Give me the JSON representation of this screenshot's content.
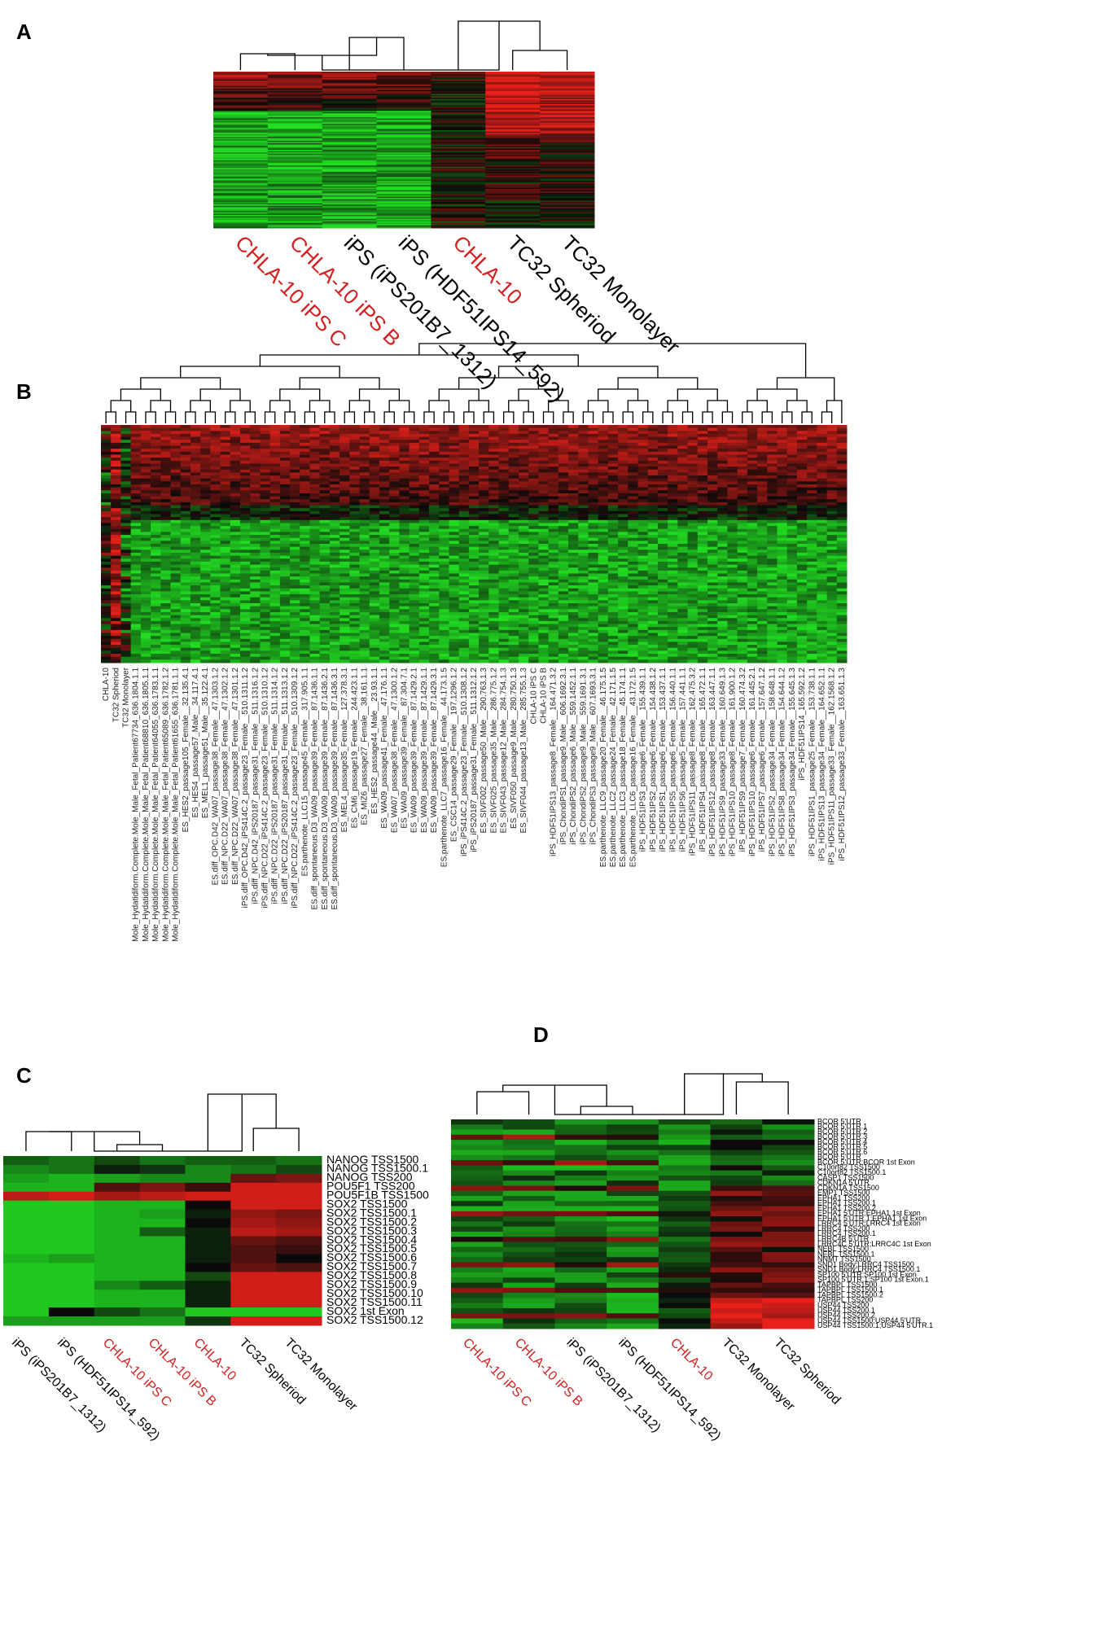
{
  "panels": {
    "A": "A",
    "B": "B",
    "C": "C",
    "D": "D"
  },
  "colors": {
    "red": "#e8201a",
    "green": "#22dd22",
    "black": "#000000",
    "highlight": "#d42020"
  },
  "chart_data": [
    {
      "type": "heatmap",
      "panel": "A",
      "columns": [
        {
          "label": "CHLA-10 iPS C",
          "highlight": true
        },
        {
          "label": "CHLA-10 iPS B",
          "highlight": true
        },
        {
          "label": "iPS (iPS201B7_1312)",
          "highlight": false
        },
        {
          "label": "iPS (HDF51IPS14_592)",
          "highlight": false
        },
        {
          "label": "CHLA-10",
          "highlight": true
        },
        {
          "label": "TC32 Spheriod",
          "highlight": false
        },
        {
          "label": "TC32 Monolayer",
          "highlight": false
        }
      ],
      "dendrogram": [
        [
          0,
          1
        ],
        [
          2,
          3
        ],
        [
          7,
          8
        ],
        [
          5,
          6
        ],
        [
          4,
          10
        ],
        [
          9,
          11
        ]
      ],
      "scale": "green-black-red"
    },
    {
      "type": "heatmap",
      "panel": "B",
      "columns": [
        {
          "label": "CHLA-10",
          "highlight": true
        },
        {
          "label": "TC32 Spheriod",
          "highlight": false
        },
        {
          "label": "TC32 Monolayer",
          "highlight": false
        },
        {
          "label": "Mole_Hydatidiform.Complete.Mole_Male_Fetal_Patient67734_636.1804.1.1",
          "highlight": false
        },
        {
          "label": "Mole_Hydatidiform.Complete.Mole_Male_Fetal_Patient68810_636.1805.1.1",
          "highlight": false
        },
        {
          "label": "Mole_Hydatidiform.Complete.Mole_Male_Fetal_Patient64055_636.1783.1.1",
          "highlight": false
        },
        {
          "label": "Mole_Hydatidiform.Complete.Mole_Male_Fetal_Patient65089_636.1782.1.2",
          "highlight": false
        },
        {
          "label": "Mole_Hydatidiform.Complete.Mole_Male_Fetal_Patient61655_636.1781.1.1",
          "highlight": false
        },
        {
          "label": "ES_HES2_passage105_Female__32.135.4.1",
          "highlight": false
        },
        {
          "label": "ES_HES4_passage57_Male__34.117.4.1",
          "highlight": false
        },
        {
          "label": "ES_MEL1_passage51_Male__35.122.4.1",
          "highlight": false
        },
        {
          "label": "ES.diff_OPC.D42_WA07_passage38_Female__47.1303.1.2",
          "highlight": false
        },
        {
          "label": "ES.diff_NPC.D22_WA07_passage38_Female__47.1302.1.2",
          "highlight": false
        },
        {
          "label": "ES.diff_NPC.D22_WA07_passage38_Female__47.1301.1.2",
          "highlight": false
        },
        {
          "label": "iPS.diff_OPC.D42_iPS414C.2_passage23_Female__510.1311.1.2",
          "highlight": false
        },
        {
          "label": "iPS.diff_NPC.D42_iPS20187_passage31_Female__511.1316.1.2",
          "highlight": false
        },
        {
          "label": "iPS.diff_NPC.D22_iPS414C.2_passage23_Female__510.1310.1.2",
          "highlight": false
        },
        {
          "label": "iPS.diff_NPC.D22_iPS20187_passage31_Female__511.1314.1.2",
          "highlight": false
        },
        {
          "label": "iPS.diff_NPC.D22_iPS20187_passage31_Female__511.1313.1.2",
          "highlight": false
        },
        {
          "label": "iPS.diff_NPC.D22_iPS414C.2_passage23_Female__510.1309.1.2",
          "highlight": false
        },
        {
          "label": "ES.parthenote_LLC15_passage45_Female__317.905.1.1",
          "highlight": false
        },
        {
          "label": "ES.diff_spontaneous.D3_WA09_passage39_Female__87.1436.1.1",
          "highlight": false
        },
        {
          "label": "ES.diff_spontaneous.D3_WA09_passage39_Female__87.1436.2.1",
          "highlight": false
        },
        {
          "label": "ES.diff_spontaneous.D3_WA09_passage39_Female__87.1436.3.1",
          "highlight": false
        },
        {
          "label": "ES_MEL4_passage35_Female__127.378.3.1",
          "highlight": false
        },
        {
          "label": "ES_CM6_passage19_Female__244.423.1.1",
          "highlight": false
        },
        {
          "label": "ES_MIZ6_passage27_Female__38.161.1.1",
          "highlight": false
        },
        {
          "label": "ES_HES2_passage44_Male__23.93.1.1",
          "highlight": false
        },
        {
          "label": "ES_WA09_passage41_Female__47.176.1.1",
          "highlight": false
        },
        {
          "label": "ES_WA07_passage38_Female__47.1300.1.2",
          "highlight": false
        },
        {
          "label": "ES_WA09_passage39_Female__87.304.7.1",
          "highlight": false
        },
        {
          "label": "ES_WA09_passage39_Female__87.1429.2.1",
          "highlight": false
        },
        {
          "label": "ES_WA09_passage39_Female__87.1429.1.1",
          "highlight": false
        },
        {
          "label": "ES_WA09_passage39_Female__87.1429.3.1",
          "highlight": false
        },
        {
          "label": "ES.parthenote_LLC7_passage16_Female__44.173.1.5",
          "highlight": false
        },
        {
          "label": "ES_CSC14_passage29_Female__197.1296.1.2",
          "highlight": false
        },
        {
          "label": "iPS_iPS414C.2_passage23_Female__510.1308.1.2",
          "highlight": false
        },
        {
          "label": "iPS_iPS20187_passage31_Female__511.1312.1.2",
          "highlight": false
        },
        {
          "label": "ES_SIVF002_passage50_Male__290.763.1.3",
          "highlight": false
        },
        {
          "label": "ES_SIVF025_passage35_Male__286.775.1.2",
          "highlight": false
        },
        {
          "label": "ES_SIVF043_passage12_Male__284.754.1.3",
          "highlight": false
        },
        {
          "label": "ES_SIVF050_passage9_Male__280.750.1.3",
          "highlight": false
        },
        {
          "label": "ES_SIVF044_passage13_Male__285.755.1.3",
          "highlight": false
        },
        {
          "label": "CHLA-10 iPS C",
          "highlight": true
        },
        {
          "label": "CHLA-10 iPS B",
          "highlight": true
        },
        {
          "label": "iPS_HDF51IPS13_passage8_Female__164.471.3.2",
          "highlight": false
        },
        {
          "label": "iPS_ChondiPS1_passage9_Male__606.1692.3.1",
          "highlight": false
        },
        {
          "label": "iPS_ChondiPS2_passage6_Male__559.1452.1.1",
          "highlight": false
        },
        {
          "label": "iPS_ChondiPS2_passage9_Male__559.1691.3.1",
          "highlight": false
        },
        {
          "label": "iPS_ChondiPS3_passage9_Male__607.1693.3.1",
          "highlight": false
        },
        {
          "label": "ES.parthenote_LLC9_passage20_Female__46.175.1.5",
          "highlight": false
        },
        {
          "label": "ES.parthenote_LLC2_passage24_Female__42.171.1.5",
          "highlight": false
        },
        {
          "label": "ES.parthenote_LLC3_passage18_Female__45.174.1.1",
          "highlight": false
        },
        {
          "label": "ES.parthenote_LLC6_passage16_Female__43.172.1.5",
          "highlight": false
        },
        {
          "label": "iPS_HDF51IPS3_passage6_Female__155.439.1.1",
          "highlight": false
        },
        {
          "label": "iPS_HDF51IPS2_passage6_Female__154.438.1.2",
          "highlight": false
        },
        {
          "label": "iPS_HDF51IPS1_passage6_Female__153.437.1.1",
          "highlight": false
        },
        {
          "label": "iPS_HDF51IPS5_passage6_Female__156.440.1.1",
          "highlight": false
        },
        {
          "label": "iPS_HDF51IPS6_passage5_Female__157.441.1.1",
          "highlight": false
        },
        {
          "label": "iPS_HDF51IPS11_passage8_Female__162.475.3.2",
          "highlight": false
        },
        {
          "label": "iPS_HDF51IPS4_passage8_Female__165.472.1.1",
          "highlight": false
        },
        {
          "label": "iPS_HDF51IPS12_passage8_Female__163.447.1.1",
          "highlight": false
        },
        {
          "label": "iPS_HDF51IPS9_passage33_Female__160.649.1.3",
          "highlight": false
        },
        {
          "label": "iPS_HDF51IPS10_passage8_Female__161.900.1.2",
          "highlight": false
        },
        {
          "label": "iPS_HDF51IPS9_passage7_Female__160.474.3.2",
          "highlight": false
        },
        {
          "label": "iPS_HDF51IPS10_passage6_Female__161.445.2.1",
          "highlight": false
        },
        {
          "label": "iPS_HDF51IPS7_passage6_Female__157.647.1.2",
          "highlight": false
        },
        {
          "label": "iPS_HDF51IPS2_passage34_Female__158.648.1.1",
          "highlight": false
        },
        {
          "label": "iPS_HDF51IPS8_passage34_Female__154.644.1.2",
          "highlight": false
        },
        {
          "label": "iPS_HDF51IPS3_passage34_Female__155.645.1.3",
          "highlight": false
        },
        {
          "label": "iPS_HDF51IPS14_165.592.1.2",
          "highlight": false
        },
        {
          "label": "iPS_HDF51IPS1_passage25_Female__153.738.1.1",
          "highlight": false
        },
        {
          "label": "iPS_HDF51IPS13_passage34_Female__164.652.1.1",
          "highlight": false
        },
        {
          "label": "iPS_HDF51IPS11_passage33_Female__162.1568.1.2",
          "highlight": false
        },
        {
          "label": "iPS_HDF51IPS12_passage33_Female__163.651.1.3",
          "highlight": false
        }
      ],
      "scale": "green-black-red"
    },
    {
      "type": "heatmap",
      "panel": "C",
      "columns": [
        {
          "label": "iPS (iPS201B7_1312)",
          "highlight": false
        },
        {
          "label": "iPS (HDF51IPS14_592)",
          "highlight": false
        },
        {
          "label": "CHLA-10 iPS C",
          "highlight": true
        },
        {
          "label": "CHLA-10 iPS B",
          "highlight": true
        },
        {
          "label": "CHLA-10",
          "highlight": true
        },
        {
          "label": "TC32 Spheriod",
          "highlight": false
        },
        {
          "label": "TC32 Monolayer",
          "highlight": false
        }
      ],
      "rows": [
        "NANOG TSS1500",
        "NANOG TSS1500.1",
        "NANOG TSS200",
        "POU5F1 TSS200",
        "POU5F1B TSS1500",
        "SOX2 TSS1500",
        "SOX2 TSS1500.1",
        "SOX2 TSS1500.2",
        "SOX2 TSS1500.3",
        "SOX2 TSS1500.4",
        "SOX2 TSS1500.5",
        "SOX2 TSS1500.6",
        "SOX2 TSS1500.7",
        "SOX2 TSS1500.8",
        "SOX2 TSS1500.9",
        "SOX2 TSS1500.10",
        "SOX2 TSS1500.11",
        "SOX2 1st Exon",
        "SOX2 TSS1500.12"
      ],
      "values": [
        [
          -0.4,
          -0.5,
          -0.3,
          -0.5,
          -0.4,
          -0.4,
          -0.5
        ],
        [
          -0.6,
          -0.5,
          -0.1,
          -0.2,
          -0.6,
          -0.5,
          -0.3
        ],
        [
          -0.7,
          -0.8,
          -0.7,
          -0.6,
          -0.6,
          0.4,
          0.5
        ],
        [
          -0.8,
          -0.8,
          0.3,
          0.5,
          0.2,
          0.9,
          0.9
        ],
        [
          0.8,
          0.9,
          0.7,
          0.8,
          0.9,
          0.9,
          0.9
        ],
        [
          -0.9,
          -0.9,
          -0.8,
          -0.8,
          0.0,
          0.9,
          0.9
        ],
        [
          -0.9,
          -0.9,
          -0.8,
          -0.7,
          -0.1,
          0.6,
          0.5
        ],
        [
          -0.9,
          -0.9,
          -0.8,
          -0.8,
          0.0,
          0.7,
          0.6
        ],
        [
          -0.9,
          -0.9,
          -0.8,
          -0.4,
          -0.1,
          0.8,
          0.7
        ],
        [
          -0.9,
          -0.9,
          -0.8,
          -0.8,
          -0.1,
          0.4,
          0.3
        ],
        [
          -0.9,
          -0.9,
          -0.8,
          -0.8,
          -0.1,
          0.3,
          0.2
        ],
        [
          -0.8,
          -0.7,
          -0.8,
          -0.8,
          -0.1,
          0.3,
          0.0
        ],
        [
          -0.9,
          -0.9,
          -0.8,
          -0.8,
          0.0,
          0.4,
          0.3
        ],
        [
          -0.9,
          -0.9,
          -0.8,
          -0.8,
          -0.3,
          0.9,
          0.9
        ],
        [
          -0.9,
          -0.9,
          -0.6,
          -0.4,
          -0.1,
          0.9,
          0.9
        ],
        [
          -0.9,
          -0.9,
          -0.8,
          -0.8,
          -0.1,
          0.9,
          0.9
        ],
        [
          -0.9,
          -0.9,
          -0.8,
          -0.8,
          -0.1,
          0.9,
          0.9
        ],
        [
          -0.9,
          0.0,
          -0.3,
          -0.5,
          -0.9,
          -0.9,
          -0.9
        ],
        [
          -0.7,
          -0.7,
          -0.7,
          -0.7,
          -0.2,
          0.9,
          0.9
        ]
      ],
      "dendrogram": [
        [
          2,
          3
        ],
        [
          0,
          1
        ],
        [
          8,
          7
        ],
        [
          5,
          6
        ],
        [
          4,
          10
        ],
        [
          9,
          11
        ]
      ]
    },
    {
      "type": "heatmap",
      "panel": "D",
      "columns": [
        {
          "label": "CHLA-10 iPS C",
          "highlight": true
        },
        {
          "label": "CHLA-10 iPS B",
          "highlight": true
        },
        {
          "label": "iPS (iPS201B7_1312)",
          "highlight": false
        },
        {
          "label": "iPS (HDF51IPS14_592)",
          "highlight": false
        },
        {
          "label": "CHLA-10",
          "highlight": true
        },
        {
          "label": "TC32 Monolayer",
          "highlight": false
        },
        {
          "label": "TC32 Spheriod",
          "highlight": false
        }
      ],
      "rows": [
        "BCOR 5'UTR",
        "BCOR 5'UTR.1",
        "BCOR 5'UTR.2",
        "BCOR 5'UTR.3",
        "BCOR 5'UTR.4",
        "BCOR 5'UTR.5",
        "BCOR 5'UTR.6",
        "BCOR 5'UTR",
        "BCOR 5'UTR;BCOR 1st Exon",
        "C10orf82 TSS1500",
        "C10orf82 TSS1500.1",
        "CASP1 TSS1500",
        "CDKN1A 5'UTR",
        "CDKN1A TSS1500",
        "EMP1 TSS1500",
        "EPHA1 TSS200",
        "EPHA1 TSS200.1",
        "EPHA1 TSS200.2",
        "EPHA1 5'UTR;EPHA1 1st Exon",
        "EPHA1 5'UTR.1;EPHA1 1st Exon",
        "LRRC4 5'UTR;LRRC4 1st Exon",
        "LRRC4 TSS200",
        "LRRC4 TSS200.1",
        "LRRC4B 5'UTR",
        "LRRC4C 5'UTR;LRRC4C 1st Exon",
        "NEBL TSS1500",
        "NEBL TSS1500.1",
        "NNMT TSS1500",
        "SND1 Body;LRRC4 TSS1500",
        "SND1 Body;LRRC4 TSS1500.1",
        "SP100 5'UTR;SP100 1st Exon",
        "SP100 5'UTR.1;SP100 1st Exon.1",
        "TAPBPL TSS1500",
        "TAPBPL TSS1500.1",
        "TAPBPL TSS1500.2",
        "TAPBPL TSS200",
        "USP44 TSS200",
        "USP44 TSS200.1",
        "USP44 TSS200.2",
        "USP44 TSS1500;USP44 5'UTR",
        "USP44 TSS1500.1;USP44 5'UTR.1"
      ],
      "dendrogram": [
        [
          2,
          3
        ],
        [
          0,
          1
        ],
        [
          8,
          7
        ],
        [
          5,
          6
        ],
        [
          4,
          10
        ],
        [
          9,
          11
        ]
      ],
      "scale": "green-black-red"
    }
  ]
}
